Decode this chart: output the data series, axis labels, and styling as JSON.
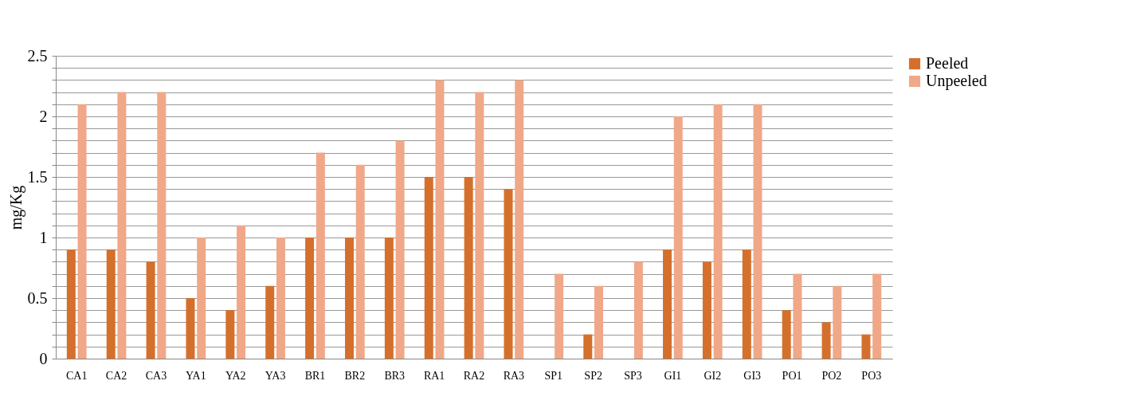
{
  "chart_data": {
    "type": "bar",
    "ylabel": "mg/Kg",
    "categories": [
      "CA1",
      "CA2",
      "CA3",
      "YA1",
      "YA2",
      "YA3",
      "BR1",
      "BR2",
      "BR3",
      "RA1",
      "RA2",
      "RA3",
      "SP1",
      "SP2",
      "SP3",
      "GI1",
      "GI2",
      "GI3",
      "PO1",
      "PO2",
      "PO3"
    ],
    "series": [
      {
        "name": "Peeled",
        "color": "#d4702c",
        "values": [
          0.9,
          0.9,
          0.8,
          0.5,
          0.4,
          0.6,
          1.0,
          1.0,
          1.0,
          1.5,
          1.5,
          1.4,
          0,
          0.2,
          0,
          0.9,
          0.8,
          0.9,
          0.4,
          0.3,
          0.2
        ]
      },
      {
        "name": "Unpeeled",
        "color": "#f0a888",
        "values": [
          2.1,
          2.2,
          2.2,
          1.0,
          1.1,
          1.0,
          1.7,
          1.6,
          1.8,
          2.3,
          2.2,
          2.3,
          0.7,
          0.6,
          0.8,
          2.0,
          2.1,
          2.1,
          0.7,
          0.6,
          0.7
        ]
      }
    ],
    "ylim": [
      0,
      2.5
    ],
    "yticks": [
      0,
      {
        "value": 0.1,
        "label": null
      },
      {
        "value": 0.2,
        "label": null
      },
      {
        "value": 0.3,
        "label": null
      },
      {
        "value": 0.4,
        "label": null
      },
      0.5,
      {
        "value": 0.6,
        "label": null
      },
      {
        "value": 0.7,
        "label": null
      },
      {
        "value": 0.8,
        "label": null
      },
      {
        "value": 0.9,
        "label": null
      },
      1,
      {
        "value": 1.1,
        "label": null
      },
      {
        "value": 1.2,
        "label": null
      },
      {
        "value": 1.3,
        "label": null
      },
      {
        "value": 1.4,
        "label": null
      },
      1.5,
      {
        "value": 1.6,
        "label": null
      },
      {
        "value": 1.7,
        "label": null
      },
      {
        "value": 1.8,
        "label": null
      },
      {
        "value": 1.9,
        "label": null
      },
      2,
      {
        "value": 2.1,
        "label": null
      },
      {
        "value": 2.2,
        "label": null
      },
      {
        "value": 2.3,
        "label": null
      },
      {
        "value": 2.4,
        "label": null
      },
      2.5
    ],
    "grid": true,
    "legend": "right"
  }
}
